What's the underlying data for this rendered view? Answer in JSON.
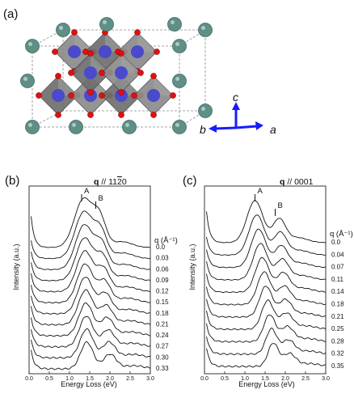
{
  "figure": {
    "panel_a": {
      "label": "(a)"
    },
    "axes_triad": {
      "c": "c",
      "b": "b",
      "a": "a"
    },
    "q_unit_label": "q (Å⁻¹)"
  },
  "chart_data": [
    {
      "panel": "(b)",
      "type": "line",
      "title": "q // 11̅2̅0",
      "title_bold": "q",
      "title_rest": " // 11",
      "title_over": "2",
      "title_end": "0",
      "xlabel": "Energy Loss (eV)",
      "ylabel": "Intensity (a.u.)",
      "xlim": [
        0.0,
        3.0
      ],
      "xticks": [
        "0.0",
        "0.5",
        "1.0",
        "1.5",
        "2.0",
        "2.5",
        "3.0"
      ],
      "peaks": [
        {
          "label": "A",
          "x": 1.3
        },
        {
          "label": "B",
          "x": 1.65
        }
      ],
      "q_values": [
        "0.0",
        "0.03",
        "0.06",
        "0.09",
        "0.12",
        "0.15",
        "0.18",
        "0.21",
        "0.24",
        "0.27",
        "0.30",
        "0.33"
      ],
      "peak_center": 1.35,
      "shoulder_center": 1.75
    },
    {
      "panel": "(c)",
      "type": "line",
      "title": "q // 0001",
      "title_bold": "q",
      "title_rest": " // 0001",
      "title_over": "",
      "title_end": "",
      "xlabel": "Energy Loss (eV)",
      "ylabel": "Intensity (a.u.)",
      "xlim": [
        0.0,
        3.0
      ],
      "xticks": [
        "0.0",
        "0.5",
        "1.0",
        "1.5",
        "2.0",
        "2.5",
        "3.0"
      ],
      "peaks": [
        {
          "label": "A",
          "x": 1.25
        },
        {
          "label": "B",
          "x": 1.75
        }
      ],
      "q_values": [
        "0.0",
        "0.04",
        "0.07",
        "0.11",
        "0.14",
        "0.18",
        "0.21",
        "0.25",
        "0.28",
        "0.32",
        "0.35"
      ],
      "peak_center": 1.25,
      "shoulder_center": 1.85
    }
  ]
}
